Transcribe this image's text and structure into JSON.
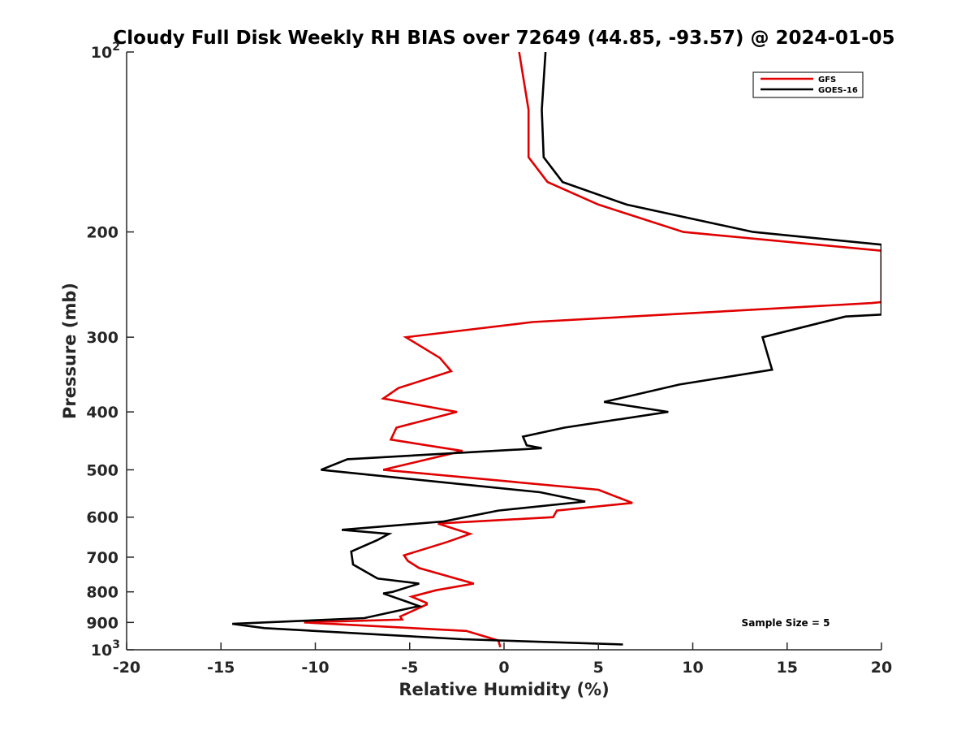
{
  "chart_data": {
    "type": "line",
    "title": "Cloudy Full Disk Weekly RH BIAS over 72649 (44.85, -93.57) @ 2024-01-05",
    "xlabel": "Relative Humidity (%)",
    "ylabel": "Pressure (mb)",
    "xlim": [
      -20,
      20
    ],
    "ylim": [
      100,
      1000
    ],
    "y_scale": "log",
    "y_reversed": true,
    "grid": false,
    "legend_placement": "top-right",
    "x_ticks": [
      "-20",
      "-15",
      "-10",
      "-5",
      "0",
      "5",
      "10",
      "15",
      "20"
    ],
    "y_ticks": [
      {
        "value": 100,
        "base": "10",
        "exp": "2"
      },
      {
        "value": 200,
        "label": "200"
      },
      {
        "value": 300,
        "label": "300"
      },
      {
        "value": 400,
        "label": "400"
      },
      {
        "value": 500,
        "label": "500"
      },
      {
        "value": 600,
        "label": "600"
      },
      {
        "value": 700,
        "label": "700"
      },
      {
        "value": 800,
        "label": "800"
      },
      {
        "value": 900,
        "label": "900"
      },
      {
        "value": 1000,
        "base": "10",
        "exp": "3"
      }
    ],
    "annotation": "Sample Size = 5",
    "series": [
      {
        "name": "GFS",
        "color": "#e00000",
        "points": [
          [
            0.8,
            100
          ],
          [
            1.3,
            125
          ],
          [
            1.3,
            150
          ],
          [
            2.3,
            165
          ],
          [
            5.0,
            180
          ],
          [
            9.5,
            200
          ],
          [
            20.0,
            215
          ],
          [
            20.0,
            262
          ],
          [
            19.5,
            263
          ],
          [
            1.5,
            283
          ],
          [
            -5.2,
            300
          ],
          [
            -3.4,
            325
          ],
          [
            -2.8,
            342
          ],
          [
            -5.6,
            365
          ],
          [
            -6.4,
            380
          ],
          [
            -2.5,
            400
          ],
          [
            -5.7,
            425
          ],
          [
            -6.0,
            445
          ],
          [
            -2.2,
            465
          ],
          [
            -6.4,
            500
          ],
          [
            5.0,
            540
          ],
          [
            6.8,
            568
          ],
          [
            2.8,
            585
          ],
          [
            2.6,
            600
          ],
          [
            -3.5,
            615
          ],
          [
            -1.8,
            640
          ],
          [
            -3.0,
            660
          ],
          [
            -5.3,
            695
          ],
          [
            -5.1,
            710
          ],
          [
            -4.5,
            730
          ],
          [
            -1.6,
            775
          ],
          [
            -3.6,
            795
          ],
          [
            -4.9,
            815
          ],
          [
            -4.1,
            835
          ],
          [
            -4.1,
            840
          ],
          [
            -5.5,
            880
          ],
          [
            -5.4,
            890
          ],
          [
            -10.6,
            900
          ],
          [
            -2.0,
            930
          ],
          [
            -0.3,
            965
          ],
          [
            -0.2,
            990
          ]
        ]
      },
      {
        "name": "GOES-16",
        "color": "#000000",
        "points": [
          [
            2.2,
            100
          ],
          [
            2.0,
            125
          ],
          [
            2.1,
            150
          ],
          [
            3.1,
            165
          ],
          [
            6.5,
            180
          ],
          [
            13.2,
            200
          ],
          [
            20.0,
            210
          ],
          [
            20.0,
            275
          ],
          [
            18.1,
            277
          ],
          [
            13.7,
            300
          ],
          [
            14.2,
            340
          ],
          [
            9.3,
            360
          ],
          [
            5.3,
            385
          ],
          [
            8.7,
            400
          ],
          [
            3.2,
            425
          ],
          [
            1.0,
            440
          ],
          [
            1.2,
            455
          ],
          [
            2.0,
            460
          ],
          [
            -8.3,
            480
          ],
          [
            -9.7,
            500
          ],
          [
            1.9,
            545
          ],
          [
            4.3,
            565
          ],
          [
            -0.3,
            585
          ],
          [
            -3.2,
            610
          ],
          [
            -8.6,
            630
          ],
          [
            -6.1,
            640
          ],
          [
            -6.7,
            655
          ],
          [
            -8.1,
            685
          ],
          [
            -8.0,
            720
          ],
          [
            -6.7,
            760
          ],
          [
            -4.5,
            775
          ],
          [
            -5.9,
            800
          ],
          [
            -6.4,
            805
          ],
          [
            -5.2,
            830
          ],
          [
            -4.5,
            845
          ],
          [
            -7.4,
            885
          ],
          [
            -14.4,
            905
          ],
          [
            -12.7,
            920
          ],
          [
            -2.2,
            960
          ],
          [
            6.3,
            980
          ]
        ]
      }
    ]
  }
}
